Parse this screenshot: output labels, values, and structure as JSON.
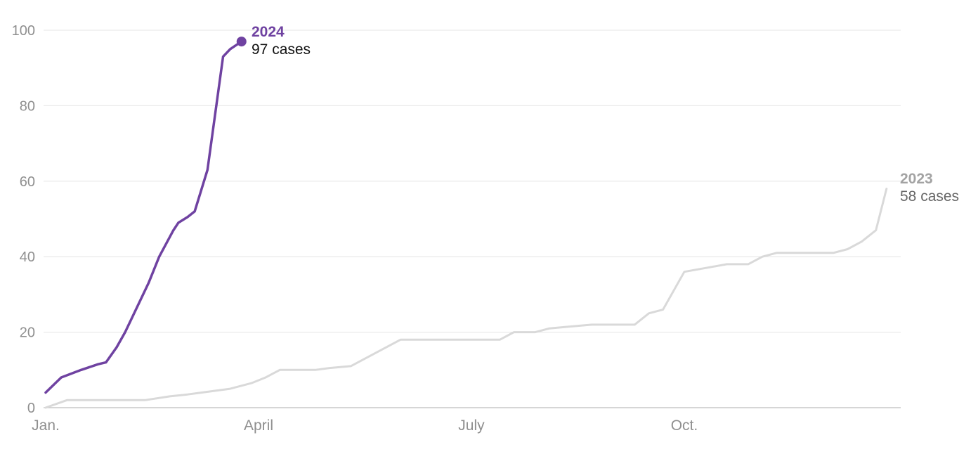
{
  "chart_data": {
    "type": "line",
    "title": "",
    "xlabel": "",
    "ylabel": "",
    "ylim": [
      0,
      100
    ],
    "xlim": [
      0,
      12.05
    ],
    "grid": true,
    "legend_position": "end-of-line-labels",
    "colors": {
      "grid": "#e4e4e4",
      "baseline": "#c8c8c8",
      "tick_label": "#8f8f8f",
      "purple": "#6f42a1",
      "gray_line": "#d9d9d9"
    },
    "y_ticks": [
      {
        "value": 0,
        "label": "0"
      },
      {
        "value": 20,
        "label": "20"
      },
      {
        "value": 40,
        "label": "40"
      },
      {
        "value": 60,
        "label": "60"
      },
      {
        "value": 80,
        "label": "80"
      },
      {
        "value": 100,
        "label": "100"
      }
    ],
    "x_ticks": [
      {
        "value": 0,
        "label": "Jan."
      },
      {
        "value": 3,
        "label": "April"
      },
      {
        "value": 6,
        "label": "July"
      },
      {
        "value": 9,
        "label": "Oct."
      }
    ],
    "series": [
      {
        "name": "2024",
        "cases_label": "97 cases",
        "final_value": 97,
        "color": "#6f42a1",
        "end_dot": true,
        "points": [
          [
            0,
            4
          ],
          [
            0.22,
            8
          ],
          [
            0.5,
            10
          ],
          [
            0.74,
            11.5
          ],
          [
            0.85,
            12
          ],
          [
            1.0,
            16
          ],
          [
            1.12,
            20
          ],
          [
            1.45,
            33
          ],
          [
            1.6,
            40
          ],
          [
            1.8,
            47
          ],
          [
            1.87,
            49
          ],
          [
            2.0,
            50.5
          ],
          [
            2.1,
            52
          ],
          [
            2.28,
            63
          ],
          [
            2.5,
            93
          ],
          [
            2.6,
            95
          ],
          [
            2.76,
            97
          ]
        ]
      },
      {
        "name": "2023",
        "cases_label": "58 cases",
        "final_value": 58,
        "color": "#d9d9d9",
        "end_dot": false,
        "points": [
          [
            0,
            0
          ],
          [
            0.3,
            2
          ],
          [
            0.9,
            2
          ],
          [
            1.4,
            2
          ],
          [
            1.75,
            3
          ],
          [
            2.0,
            3.5
          ],
          [
            2.2,
            4
          ],
          [
            2.6,
            5
          ],
          [
            2.9,
            6.5
          ],
          [
            3.1,
            8
          ],
          [
            3.3,
            10
          ],
          [
            3.8,
            10
          ],
          [
            4.0,
            10.5
          ],
          [
            4.3,
            11
          ],
          [
            4.5,
            13
          ],
          [
            4.8,
            16
          ],
          [
            5.0,
            18
          ],
          [
            5.5,
            18
          ],
          [
            6.0,
            18
          ],
          [
            6.4,
            18
          ],
          [
            6.6,
            20
          ],
          [
            6.9,
            20
          ],
          [
            7.1,
            21
          ],
          [
            7.4,
            21.5
          ],
          [
            7.7,
            22
          ],
          [
            8.0,
            22
          ],
          [
            8.3,
            22
          ],
          [
            8.5,
            25
          ],
          [
            8.7,
            26
          ],
          [
            9.0,
            36
          ],
          [
            9.3,
            37
          ],
          [
            9.6,
            38
          ],
          [
            9.9,
            38
          ],
          [
            10.1,
            40
          ],
          [
            10.3,
            41
          ],
          [
            10.8,
            41
          ],
          [
            11.1,
            41
          ],
          [
            11.3,
            42
          ],
          [
            11.5,
            44
          ],
          [
            11.7,
            47
          ],
          [
            11.85,
            58
          ]
        ]
      }
    ]
  }
}
